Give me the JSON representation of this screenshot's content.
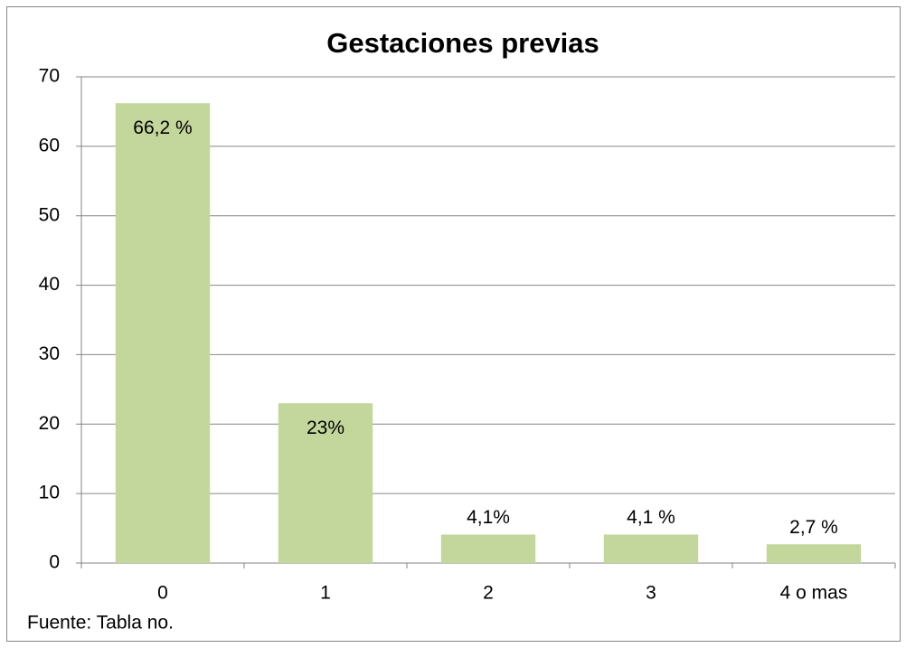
{
  "chart_data": {
    "type": "bar",
    "title": "Gestaciones previas",
    "categories": [
      "0",
      "1",
      "2",
      "3",
      "4 o mas"
    ],
    "values": [
      66.2,
      23,
      4.1,
      4.1,
      2.7
    ],
    "value_labels": [
      "66,2 %",
      "23%",
      "4,1%",
      "4,1 %",
      "2,7 %"
    ],
    "color": "#c3d69b",
    "ylim": [
      0,
      70
    ],
    "yticks": [
      0,
      10,
      20,
      30,
      40,
      50,
      60,
      70
    ],
    "grid": true,
    "note": "Fuente: Tabla no."
  }
}
